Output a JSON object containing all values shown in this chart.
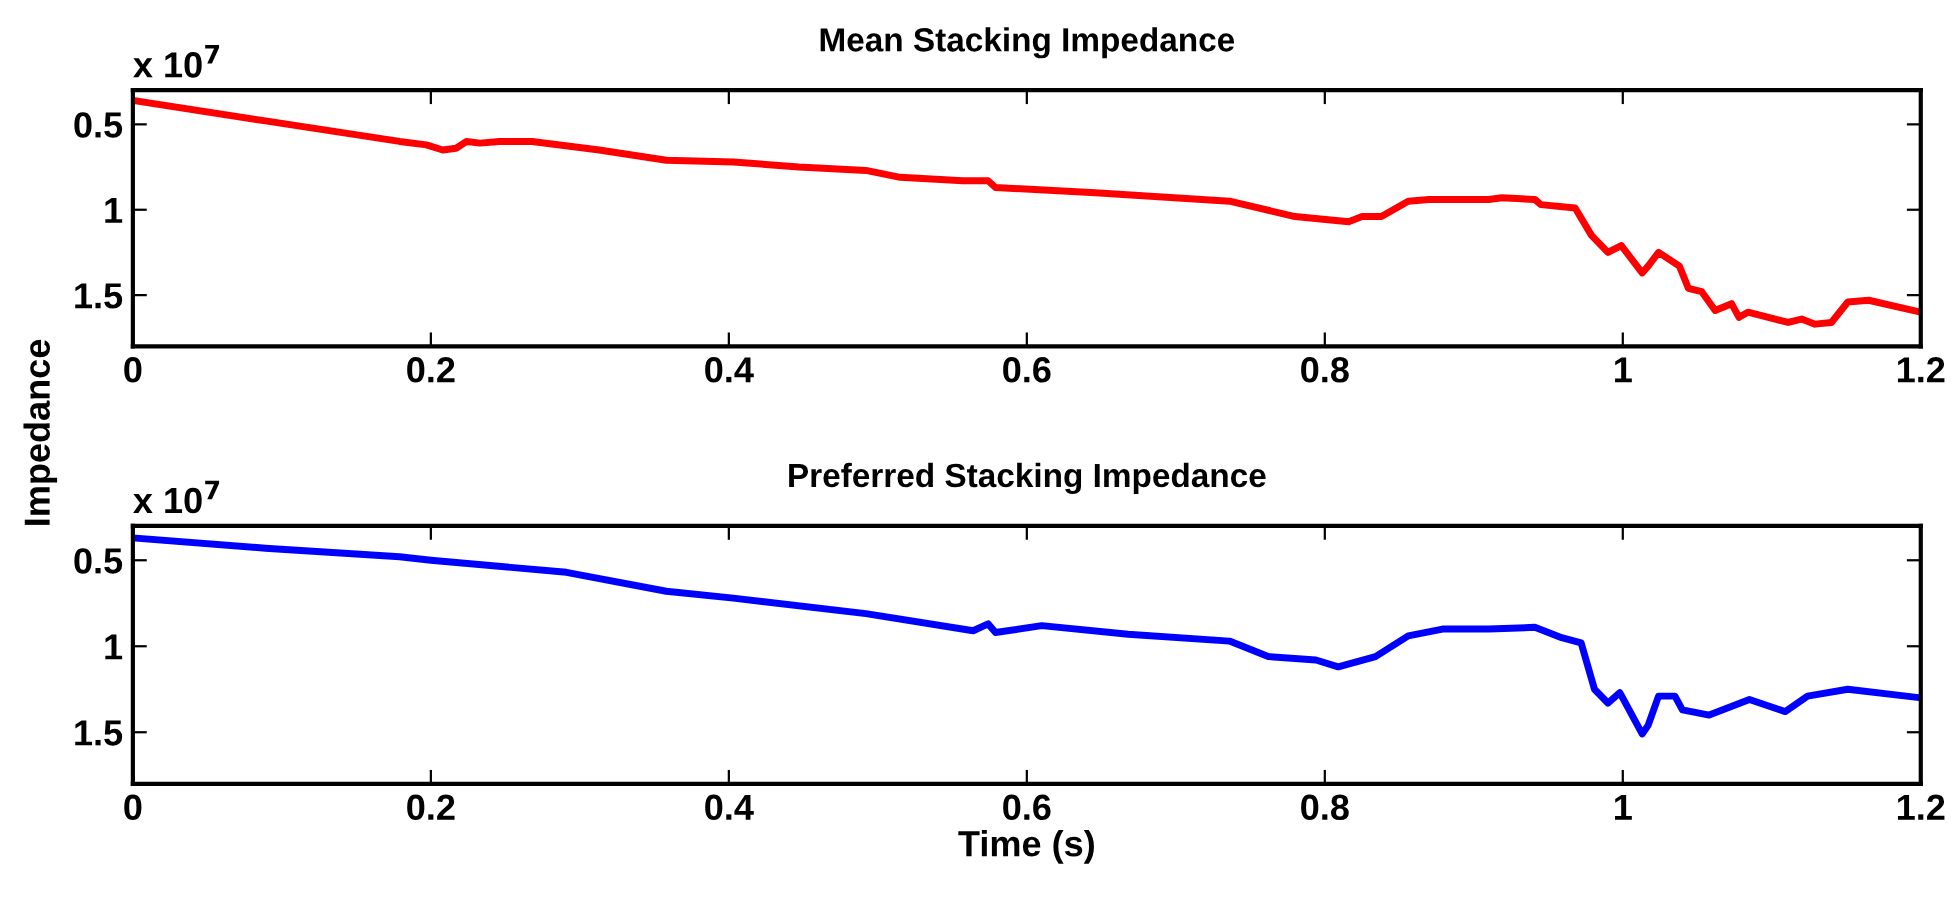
{
  "chart_data": [
    {
      "type": "line",
      "title": "Mean Stacking Impedance",
      "ylabel": "Impedance",
      "annotations": [
        "x 10$^{7}$"
      ],
      "xlim": [
        0,
        1.2
      ],
      "xticks": [
        0,
        0.2,
        0.4,
        0.6,
        0.8,
        1,
        1.2
      ],
      "ylim": [
        1.8,
        0.3
      ],
      "yticks": [
        0.5,
        1,
        1.5
      ],
      "grid": false,
      "legend": false,
      "x": [
        0,
        0.089,
        0.179,
        0.197,
        0.208,
        0.217,
        0.224,
        0.233,
        0.246,
        0.268,
        0.313,
        0.358,
        0.403,
        0.447,
        0.492,
        0.515,
        0.557,
        0.574,
        0.579,
        0.646,
        0.736,
        0.78,
        0.816,
        0.825,
        0.838,
        0.856,
        0.87,
        0.91,
        0.919,
        0.941,
        0.945,
        0.968,
        0.979,
        0.99,
        0.999,
        1.013,
        1.017,
        1.024,
        1.038,
        1.044,
        1.053,
        1.062,
        1.073,
        1.078,
        1.084,
        1.111,
        1.12,
        1.129,
        1.14,
        1.151,
        1.165,
        1.2
      ],
      "series": [
        {
          "color": "#ff0000",
          "values": [
            0.36,
            0.48,
            0.6,
            0.62,
            0.65,
            0.64,
            0.6,
            0.61,
            0.6,
            0.6,
            0.65,
            0.71,
            0.72,
            0.75,
            0.77,
            0.81,
            0.83,
            0.83,
            0.87,
            0.9,
            0.95,
            1.04,
            1.07,
            1.04,
            1.04,
            0.95,
            0.94,
            0.94,
            0.93,
            0.94,
            0.97,
            0.99,
            1.15,
            1.25,
            1.21,
            1.37,
            1.33,
            1.25,
            1.33,
            1.46,
            1.48,
            1.59,
            1.55,
            1.63,
            1.6,
            1.66,
            1.64,
            1.67,
            1.66,
            1.54,
            1.53,
            1.6
          ]
        }
      ]
    },
    {
      "type": "line",
      "title": "Preferred Stacking Impedance",
      "xlabel": "Time (s)",
      "annotations": [
        "x 10$^{7}$"
      ],
      "xlim": [
        0,
        1.2
      ],
      "xticks": [
        0,
        0.2,
        0.4,
        0.6,
        0.8,
        1,
        1.2
      ],
      "ylim": [
        1.8,
        0.3
      ],
      "yticks": [
        0.5,
        1,
        1.5
      ],
      "grid": false,
      "legend": false,
      "x": [
        0,
        0.089,
        0.179,
        0.2,
        0.291,
        0.358,
        0.403,
        0.492,
        0.564,
        0.574,
        0.579,
        0.61,
        0.668,
        0.736,
        0.762,
        0.794,
        0.809,
        0.834,
        0.856,
        0.879,
        0.91,
        0.941,
        0.959,
        0.972,
        0.981,
        0.99,
        0.998,
        1.013,
        1.017,
        1.024,
        1.035,
        1.04,
        1.058,
        1.085,
        1.109,
        1.124,
        1.151,
        1.2
      ],
      "series": [
        {
          "color": "#0000ff",
          "values": [
            0.37,
            0.43,
            0.48,
            0.5,
            0.57,
            0.68,
            0.72,
            0.81,
            0.91,
            0.87,
            0.92,
            0.88,
            0.93,
            0.97,
            1.06,
            1.08,
            1.12,
            1.06,
            0.94,
            0.9,
            0.9,
            0.89,
            0.95,
            0.98,
            1.25,
            1.33,
            1.27,
            1.51,
            1.46,
            1.29,
            1.29,
            1.37,
            1.4,
            1.31,
            1.38,
            1.29,
            1.25,
            1.3
          ]
        }
      ]
    }
  ]
}
